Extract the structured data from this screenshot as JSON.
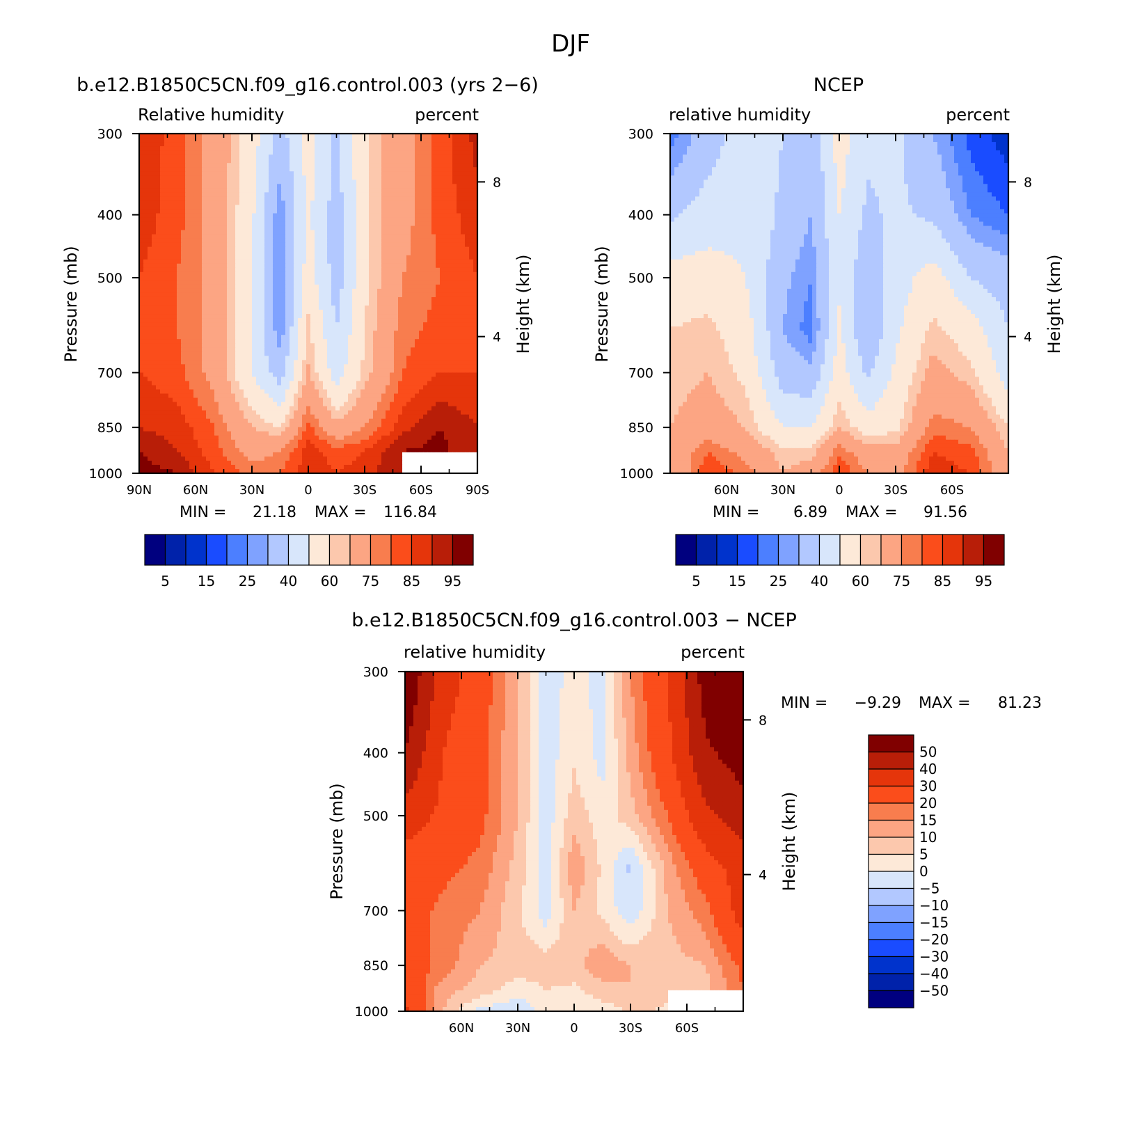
{
  "figure": {
    "title": "DJF"
  },
  "colors": {
    "abs_scale": [
      "#00007f",
      "#0022aa",
      "#0033cc",
      "#1a4cff",
      "#4c7fff",
      "#7fa2ff",
      "#b2c8ff",
      "#d8e6fb",
      "#fde9d8",
      "#fcc8ad",
      "#fca583",
      "#f87d4e",
      "#fb4d1b",
      "#e5350b",
      "#b81e08",
      "#800000"
    ],
    "diff_scale": [
      "#00007f",
      "#0022aa",
      "#0033cc",
      "#1a4cff",
      "#4c7fff",
      "#7fa2ff",
      "#b2c8ff",
      "#d8e6fb",
      "#fde9d8",
      "#fcc8ad",
      "#fca583",
      "#f87d4e",
      "#fb4d1b",
      "#e5350b",
      "#b81e08",
      "#800000"
    ]
  },
  "chart_data": [
    {
      "type": "heatmap",
      "title": "b.e12.B1850C5CN.f09_g16.control.003 (yrs 2−6)",
      "left_label": "Relative humidity",
      "right_label": "percent",
      "ylabel": "Pressure (mb)",
      "ylabel_right": "Height (km)",
      "x_ticks": [
        "90N",
        "60N",
        "30N",
        "0",
        "30S",
        "60S",
        "90S"
      ],
      "y_ticks": [
        "300",
        "400",
        "500",
        "700",
        "850",
        "1000"
      ],
      "y_ticks_right": [
        "8",
        "4"
      ],
      "stats": {
        "min_label": "MIN =",
        "min": "21.18",
        "max_label": "MAX =",
        "max": "116.84"
      },
      "colorbar_labels": [
        "5",
        "15",
        "25",
        "40",
        "60",
        "75",
        "85",
        "95"
      ],
      "grid": {
        "lat": [
          90,
          70,
          50,
          30,
          15,
          0,
          -15,
          -30,
          -50,
          -70,
          -90
        ],
        "plev": [
          300,
          400,
          500,
          600,
          700,
          850,
          925,
          1000
        ],
        "values": [
          [
            90,
            82,
            72,
            55,
            35,
            55,
            38,
            58,
            72,
            82,
            92
          ],
          [
            88,
            82,
            72,
            52,
            25,
            52,
            35,
            58,
            72,
            82,
            88
          ],
          [
            85,
            80,
            72,
            50,
            25,
            55,
            35,
            58,
            75,
            80,
            85
          ],
          [
            82,
            80,
            72,
            50,
            25,
            62,
            40,
            60,
            78,
            82,
            82
          ],
          [
            85,
            82,
            72,
            50,
            35,
            66,
            45,
            62,
            80,
            85,
            85
          ],
          [
            90,
            88,
            80,
            65,
            60,
            82,
            68,
            75,
            88,
            95,
            90
          ],
          [
            95,
            90,
            82,
            72,
            75,
            88,
            82,
            85,
            95,
            97,
            90
          ],
          [
            98,
            95,
            85,
            78,
            80,
            88,
            85,
            88,
            95,
            98,
            90
          ]
        ]
      }
    },
    {
      "type": "heatmap",
      "title": "NCEP",
      "left_label": "relative humidity",
      "right_label": "percent",
      "ylabel": "Pressure (mb)",
      "ylabel_right": "Height (km)",
      "x_ticks": [
        "60N",
        "30N",
        "0",
        "30S",
        "60S"
      ],
      "y_ticks": [
        "300",
        "400",
        "500",
        "700",
        "850",
        "1000"
      ],
      "y_ticks_right": [
        "8",
        "4"
      ],
      "stats": {
        "min_label": "MIN =",
        "min": "6.89",
        "max_label": "MAX =",
        "max": "91.56"
      },
      "colorbar_labels": [
        "5",
        "15",
        "25",
        "40",
        "60",
        "75",
        "85",
        "95"
      ],
      "grid": {
        "lat": [
          90,
          70,
          50,
          30,
          15,
          0,
          -15,
          -30,
          -50,
          -70,
          -90
        ],
        "plev": [
          300,
          400,
          500,
          600,
          700,
          850,
          925,
          1000
        ],
        "values": [
          [
            22,
            35,
            45,
            40,
            32,
            55,
            42,
            42,
            30,
            18,
            12
          ],
          [
            38,
            45,
            48,
            38,
            30,
            50,
            38,
            42,
            38,
            25,
            20
          ],
          [
            55,
            55,
            50,
            32,
            25,
            48,
            32,
            45,
            55,
            40,
            35
          ],
          [
            60,
            62,
            55,
            30,
            22,
            52,
            30,
            48,
            62,
            55,
            40
          ],
          [
            62,
            65,
            58,
            35,
            32,
            55,
            38,
            52,
            68,
            62,
            45
          ],
          [
            65,
            70,
            65,
            50,
            50,
            65,
            55,
            58,
            78,
            75,
            60
          ],
          [
            68,
            80,
            72,
            62,
            62,
            78,
            70,
            68,
            85,
            82,
            65
          ],
          [
            65,
            85,
            78,
            65,
            70,
            85,
            75,
            72,
            88,
            85,
            68
          ]
        ]
      }
    },
    {
      "type": "heatmap",
      "title": "b.e12.B1850C5CN.f09_g16.control.003 − NCEP",
      "left_label": "relative humidity",
      "right_label": "percent",
      "ylabel": "Pressure (mb)",
      "ylabel_right": "Height (km)",
      "x_ticks": [
        "60N",
        "30N",
        "0",
        "30S",
        "60S"
      ],
      "y_ticks": [
        "300",
        "400",
        "500",
        "700",
        "850",
        "1000"
      ],
      "y_ticks_right": [
        "8",
        "4"
      ],
      "stats": {
        "min_label": "MIN =",
        "min": "−9.29",
        "max_label": "MAX =",
        "max": "81.23"
      },
      "colorbar_labels": [
        "50",
        "40",
        "30",
        "20",
        "15",
        "10",
        "5",
        "0",
        "−5",
        "−10",
        "−15",
        "−20",
        "−30",
        "−40",
        "−50"
      ],
      "grid": {
        "lat": [
          90,
          70,
          50,
          30,
          15,
          0,
          -15,
          -30,
          -50,
          -70,
          -90
        ],
        "plev": [
          300,
          400,
          500,
          600,
          700,
          850,
          925,
          1000
        ],
        "values": [
          [
            60,
            35,
            25,
            10,
            -3,
            2,
            -2,
            15,
            30,
            55,
            70
          ],
          [
            50,
            30,
            22,
            10,
            -3,
            4,
            -2,
            12,
            28,
            48,
            55
          ],
          [
            35,
            28,
            22,
            10,
            -3,
            8,
            2,
            8,
            20,
            38,
            45
          ],
          [
            25,
            22,
            18,
            8,
            -3,
            14,
            4,
            -6,
            12,
            25,
            35
          ],
          [
            25,
            18,
            15,
            6,
            -3,
            10,
            4,
            -4,
            10,
            18,
            35
          ],
          [
            25,
            18,
            10,
            8,
            8,
            8,
            14,
            10,
            8,
            10,
            22
          ],
          [
            28,
            12,
            8,
            2,
            5,
            4,
            8,
            10,
            6,
            8,
            20
          ],
          [
            32,
            10,
            -2,
            -4,
            2,
            1,
            2,
            6,
            4,
            8,
            18
          ]
        ]
      }
    }
  ]
}
